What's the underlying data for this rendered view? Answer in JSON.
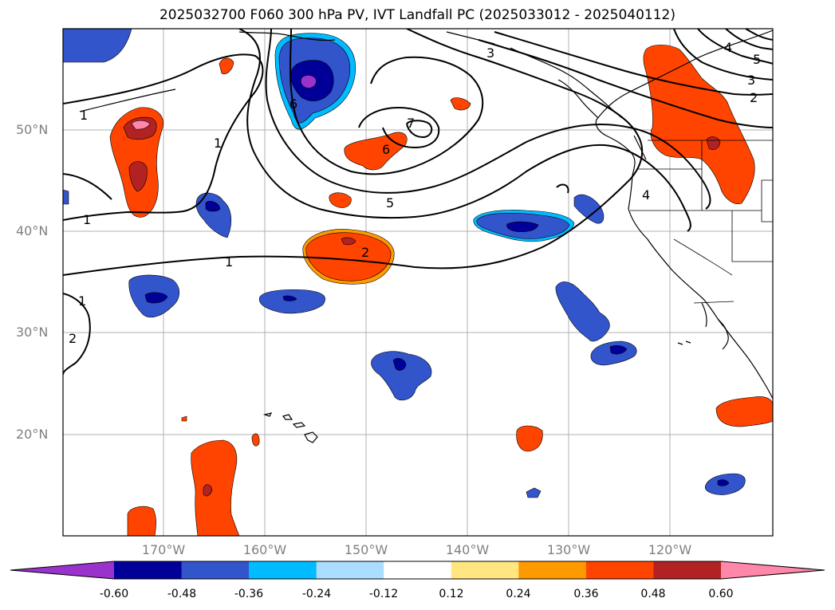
{
  "title": "2025032700 F060 300 hPa PV, IVT Landfall PC (2025033012 - 2025040112)",
  "lat_labels": [
    "50°N",
    "40°N",
    "30°N",
    "20°N"
  ],
  "lon_labels": [
    "170°W",
    "160°W",
    "150°W",
    "140°W",
    "130°W",
    "120°W"
  ],
  "colorbar": {
    "ticks": [
      "-0.60",
      "-0.48",
      "-0.36",
      "-0.24",
      "-0.12",
      "0.12",
      "0.24",
      "0.36",
      "0.48",
      "0.60"
    ],
    "colors": [
      "#9933cc",
      "#000099",
      "#3355cc",
      "#00bbff",
      "#aaddff",
      "#ffffff",
      "#ffe680",
      "#ff9900",
      "#ff4400",
      "#b22222",
      "#ff88aa"
    ]
  },
  "contour_labels": [
    "1",
    "1",
    "1",
    "1",
    "2",
    "2",
    "3",
    "3",
    "4",
    "4",
    "5",
    "5",
    "6",
    "6",
    "7",
    "1",
    "2"
  ]
}
